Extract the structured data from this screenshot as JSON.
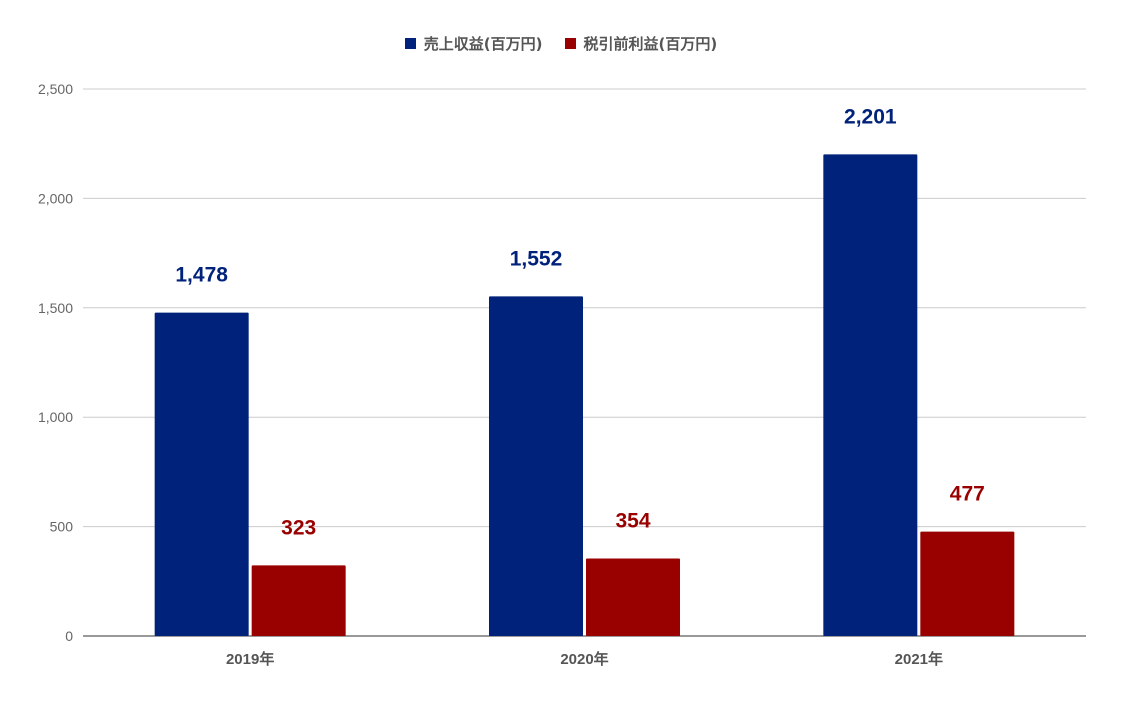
{
  "chart_data": {
    "type": "bar",
    "categories": [
      "2019年",
      "2020年",
      "2021年"
    ],
    "series": [
      {
        "name": "売上収益(百万円)",
        "values": [
          1478,
          1552,
          2201
        ],
        "labels": [
          "1,478",
          "1,552",
          "2,201"
        ],
        "color": "#00227a"
      },
      {
        "name": "税引前利益(百万円)",
        "values": [
          323,
          354,
          477
        ],
        "labels": [
          "323",
          "354",
          "477"
        ],
        "color": "#990000"
      }
    ],
    "ylim": [
      0,
      2500
    ],
    "yticks": [
      0,
      500,
      1000,
      1500,
      2000,
      2500
    ],
    "ytick_labels": [
      "0",
      "500",
      "1,000",
      "1,500",
      "2,000",
      "2,500"
    ],
    "grid": true,
    "legend_position": "top-center",
    "title": "",
    "xlabel": "",
    "ylabel": ""
  }
}
